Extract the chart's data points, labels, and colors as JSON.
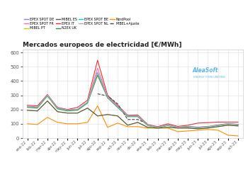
{
  "title": "Mercados europeos de electricidad [€/MWh]",
  "x_labels": [
    "ene-22",
    "feb-22",
    "mar-22",
    "abr-22",
    "may-22",
    "jun-22",
    "jul-22",
    "ago-22",
    "sep-22",
    "oct-22",
    "nov-22",
    "dic-22",
    "ene-23",
    "feb-23",
    "mar-23",
    "abr-23",
    "may-23",
    "jun-23",
    "jul-23",
    "ago-23",
    "sep-23",
    "oct-23"
  ],
  "series": {
    "EPEX SPOT DE": {
      "color": "#8b7fd4",
      "values": [
        220,
        215,
        300,
        210,
        195,
        200,
        250,
        460,
        285,
        220,
        155,
        155,
        90,
        75,
        90,
        75,
        80,
        75,
        80,
        90,
        100,
        95
      ]
    },
    "EPEX IT": {
      "color": "#e83030",
      "values": [
        230,
        225,
        305,
        215,
        200,
        215,
        265,
        545,
        300,
        230,
        160,
        162,
        95,
        80,
        100,
        82,
        90,
        105,
        108,
        112,
        112,
        112
      ]
    },
    "NordPool": {
      "color": "#ff8c00",
      "values": [
        100,
        95,
        145,
        110,
        100,
        100,
        110,
        225,
        75,
        105,
        80,
        80,
        70,
        70,
        70,
        45,
        50,
        55,
        60,
        55,
        20,
        15
      ]
    },
    "EPEX SPOT FR": {
      "color": "#ff69b4",
      "values": [
        222,
        217,
        302,
        212,
        197,
        202,
        252,
        490,
        292,
        226,
        157,
        157,
        92,
        77,
        92,
        77,
        82,
        77,
        82,
        92,
        102,
        97
      ]
    },
    "N2EX UK": {
      "color": "#3a8c3a",
      "values": [
        215,
        210,
        295,
        205,
        190,
        195,
        245,
        440,
        282,
        215,
        150,
        150,
        88,
        73,
        88,
        73,
        78,
        73,
        78,
        88,
        98,
        93
      ]
    },
    "MIBEL+Ajuste": {
      "color": "#444444",
      "dashed": true,
      "values": [
        null,
        null,
        null,
        null,
        null,
        null,
        null,
        310,
        295,
        240,
        130,
        130,
        100,
        null,
        null,
        null,
        null,
        null,
        null,
        null,
        null,
        null
      ]
    },
    "MIBEL PT": {
      "color": "#c8c800",
      "values": [
        195,
        190,
        260,
        185,
        175,
        175,
        210,
        155,
        165,
        155,
        90,
        110,
        75,
        70,
        75,
        70,
        70,
        65,
        70,
        80,
        90,
        85
      ]
    },
    "EPEX SPOT BE": {
      "color": "#00ced1",
      "values": [
        220,
        215,
        300,
        210,
        195,
        200,
        250,
        460,
        288,
        220,
        155,
        155,
        90,
        75,
        90,
        75,
        80,
        75,
        80,
        90,
        100,
        95
      ]
    },
    "MIBEL ES": {
      "color": "#555555",
      "values": [
        195,
        190,
        260,
        185,
        175,
        175,
        210,
        155,
        165,
        155,
        90,
        110,
        75,
        70,
        75,
        70,
        70,
        65,
        70,
        80,
        90,
        85
      ]
    },
    "EPEX SPOT NL": {
      "color": "#aaaaaa",
      "values": [
        220,
        215,
        300,
        210,
        195,
        200,
        250,
        460,
        288,
        220,
        155,
        155,
        90,
        75,
        90,
        75,
        80,
        75,
        80,
        90,
        100,
        95
      ]
    }
  },
  "ylim": [
    0,
    620
  ],
  "yticks": [
    0,
    100,
    200,
    300,
    400,
    500,
    600
  ],
  "background_color": "#ffffff",
  "grid_color": "#dddddd",
  "legend_order": [
    "EPEX SPOT DE",
    "EPEX SPOT FR",
    "MIBEL PT",
    "MIBEL ES",
    "EPEX IT",
    "N2EX UK",
    "EPEX SPOT BE",
    "EPEX SPOT NL",
    "NordPool",
    "MIBEL+Ajuste"
  ],
  "aleasoft_text": "AleaSoft",
  "aleasoft_sub": "ENERGY FORECASTING"
}
